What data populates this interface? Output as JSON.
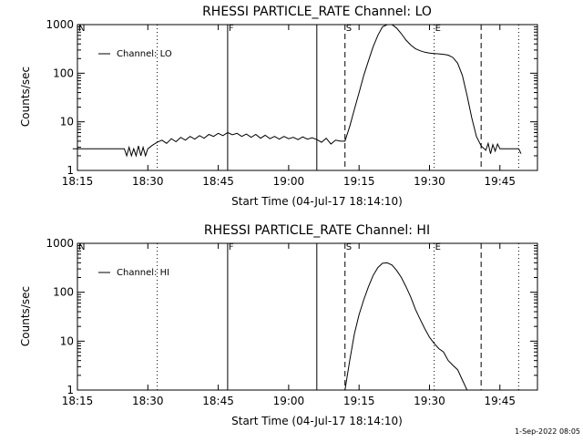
{
  "footer": {
    "timestamp": "1-Sep-2022 08:05"
  },
  "chart_data": [
    {
      "type": "line",
      "title": "RHESSI PARTICLE_RATE Channel: LO",
      "xlabel": "Start Time (04-Jul-17 18:14:10)",
      "ylabel": "Counts/sec",
      "yscale": "log",
      "xlim": [
        "18:15",
        "19:53"
      ],
      "ylim": [
        1,
        1000
      ],
      "xticks": [
        "18:15",
        "18:30",
        "18:45",
        "19:00",
        "19:15",
        "19:30",
        "19:45"
      ],
      "yticks": [
        "1",
        "10",
        "100",
        "1000"
      ],
      "legend": {
        "position": "top-left",
        "entries": [
          "Channel: LO"
        ]
      },
      "series": [
        {
          "name": "Channel: LO",
          "color": "#000000",
          "x": [
            "18:14",
            "18:25",
            "18:25:30",
            "18:26",
            "18:26:30",
            "18:27",
            "18:27:30",
            "18:28",
            "18:28:30",
            "18:29",
            "18:29:30",
            "18:30",
            "18:31",
            "18:32",
            "18:33",
            "18:34",
            "18:35",
            "18:36",
            "18:37",
            "18:38",
            "18:39",
            "18:40",
            "18:41",
            "18:42",
            "18:43",
            "18:44",
            "18:45",
            "18:46",
            "18:47",
            "18:48",
            "18:49",
            "18:50",
            "18:51",
            "18:52",
            "18:53",
            "18:54",
            "18:55",
            "18:56",
            "18:57",
            "18:58",
            "18:59",
            "19:00",
            "19:01",
            "19:02",
            "19:03",
            "19:04",
            "19:05",
            "19:06",
            "19:07",
            "19:08",
            "19:09",
            "19:10",
            "19:11",
            "19:12",
            "19:13",
            "19:14",
            "19:15",
            "19:16",
            "19:17",
            "19:18",
            "19:19",
            "19:20",
            "19:21",
            "19:22",
            "19:23",
            "19:24",
            "19:25",
            "19:26",
            "19:27",
            "19:28",
            "19:29",
            "19:30",
            "19:31",
            "19:32",
            "19:33",
            "19:34",
            "19:35",
            "19:36",
            "19:37",
            "19:38",
            "19:39",
            "19:40",
            "19:41",
            "19:42",
            "19:42:30",
            "19:43",
            "19:43:30",
            "19:44",
            "19:44:30",
            "19:45",
            "19:46",
            "19:47",
            "19:48",
            "19:49",
            "19:49:30"
          ],
          "y": [
            2.8,
            2.8,
            2.0,
            3.0,
            2.0,
            2.8,
            2.0,
            3.2,
            2.0,
            3.0,
            2.0,
            2.8,
            3.3,
            3.8,
            4.2,
            3.6,
            4.5,
            3.9,
            4.8,
            4.2,
            5.0,
            4.4,
            5.2,
            4.6,
            5.5,
            5.0,
            5.8,
            5.2,
            6.0,
            5.4,
            5.8,
            5.0,
            5.6,
            4.8,
            5.5,
            4.6,
            5.3,
            4.5,
            5.0,
            4.4,
            5.0,
            4.5,
            4.8,
            4.3,
            4.9,
            4.4,
            4.7,
            4.3,
            3.8,
            4.6,
            3.5,
            4.2,
            4.0,
            4.0,
            8.0,
            18,
            40,
            90,
            180,
            350,
            600,
            900,
            1050,
            1000,
            850,
            650,
            480,
            380,
            320,
            290,
            270,
            260,
            255,
            250,
            245,
            235,
            210,
            160,
            90,
            35,
            12,
            5.0,
            3.2,
            2.6,
            3.6,
            2.2,
            3.4,
            2.5,
            3.5,
            2.8,
            2.8,
            2.8,
            2.8,
            2.8,
            2.2
          ]
        }
      ],
      "annotations": [
        {
          "label": "N",
          "time": "18:15",
          "style": "dotted"
        },
        {
          "label": "",
          "time": "18:32",
          "style": "dotted"
        },
        {
          "label": "F",
          "time": "18:47",
          "style": "solid"
        },
        {
          "label": "",
          "time": "19:06",
          "style": "solid"
        },
        {
          "label": "S",
          "time": "19:12",
          "style": "dashed"
        },
        {
          "label": "E",
          "time": "19:31",
          "style": "dotted"
        },
        {
          "label": "",
          "time": "19:41",
          "style": "dashed"
        },
        {
          "label": "",
          "time": "19:49",
          "style": "dotted"
        }
      ]
    },
    {
      "type": "line",
      "title": "RHESSI PARTICLE_RATE Channel: HI",
      "xlabel": "Start Time (04-Jul-17 18:14:10)",
      "ylabel": "Counts/sec",
      "yscale": "log",
      "xlim": [
        "18:15",
        "19:53"
      ],
      "ylim": [
        1,
        1000
      ],
      "xticks": [
        "18:15",
        "18:30",
        "18:45",
        "19:00",
        "19:15",
        "19:30",
        "19:45"
      ],
      "yticks": [
        "1",
        "10",
        "100",
        "1000"
      ],
      "legend": {
        "position": "top-left",
        "entries": [
          "Channel: HI"
        ]
      },
      "series": [
        {
          "name": "Channel: HI",
          "color": "#000000",
          "x": [
            "19:12",
            "19:13",
            "19:14",
            "19:15",
            "19:16",
            "19:17",
            "19:18",
            "19:19",
            "19:20",
            "19:21",
            "19:22",
            "19:23",
            "19:24",
            "19:25",
            "19:26",
            "19:27",
            "19:28",
            "19:29",
            "19:30",
            "19:31",
            "19:32",
            "19:33",
            "19:34",
            "19:35",
            "19:36",
            "19:37",
            "19:38"
          ],
          "y": [
            0.8,
            4.0,
            14,
            35,
            70,
            130,
            220,
            320,
            390,
            400,
            360,
            280,
            200,
            130,
            80,
            45,
            28,
            18,
            12,
            9,
            7.0,
            6.0,
            4.0,
            3.2,
            2.6,
            1.6,
            0.8
          ]
        }
      ],
      "annotations": [
        {
          "label": "N",
          "time": "18:15",
          "style": "dotted"
        },
        {
          "label": "",
          "time": "18:32",
          "style": "dotted"
        },
        {
          "label": "F",
          "time": "18:47",
          "style": "solid"
        },
        {
          "label": "",
          "time": "19:06",
          "style": "solid"
        },
        {
          "label": "S",
          "time": "19:12",
          "style": "dashed"
        },
        {
          "label": "E",
          "time": "19:31",
          "style": "dotted"
        },
        {
          "label": "",
          "time": "19:41",
          "style": "dashed"
        },
        {
          "label": "",
          "time": "19:49",
          "style": "dotted"
        }
      ]
    }
  ]
}
